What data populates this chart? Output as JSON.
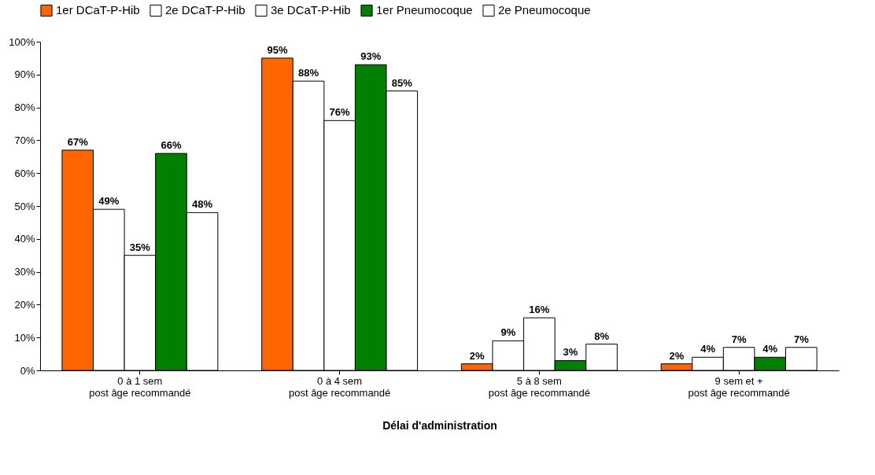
{
  "chart_data": {
    "type": "bar",
    "xlabel": "Délai d'administration",
    "categories": [
      "0 à 1 sem\npost âge recommandé",
      "0 à 4 sem\npost âge recommandé",
      "5 à 8 sem\npost âge recommandé",
      "9 sem et +\npost âge recommandé"
    ],
    "series": [
      {
        "name": "1er DCaT-P-Hib",
        "color": "#ff6600",
        "values": [
          67,
          95,
          2,
          2
        ],
        "value_labels": [
          "67%",
          "95%",
          "2%",
          "2%"
        ]
      },
      {
        "name": "2e DCaT-P-Hib",
        "color": "#ffffff",
        "values": [
          49,
          88,
          9,
          4
        ],
        "value_labels": [
          "49%",
          "88%",
          "9%",
          "4%"
        ]
      },
      {
        "name": "3e DCaT-P-Hib",
        "color": "#ffffff",
        "values": [
          35,
          76,
          16,
          7
        ],
        "value_labels": [
          "35%",
          "76%",
          "16%",
          "7%"
        ]
      },
      {
        "name": "1er Pneumocoque",
        "color": "#008000",
        "values": [
          66,
          93,
          3,
          4
        ],
        "value_labels": [
          "66%",
          "93%",
          "3%",
          "4%"
        ]
      },
      {
        "name": "2e Pneumocoque",
        "color": "#ffffff",
        "values": [
          48,
          85,
          8,
          7
        ],
        "value_labels": [
          "48%",
          "85%",
          "8%",
          "7%"
        ]
      }
    ],
    "ylim": [
      0,
      100
    ],
    "yticks": [
      {
        "value": 0,
        "label": "0%"
      },
      {
        "value": 10,
        "label": "10%"
      },
      {
        "value": 20,
        "label": "20%"
      },
      {
        "value": 30,
        "label": "30%"
      },
      {
        "value": 40,
        "label": "40%"
      },
      {
        "value": 50,
        "label": "50%"
      },
      {
        "value": 60,
        "label": "60%"
      },
      {
        "value": 70,
        "label": "70%"
      },
      {
        "value": 80,
        "label": "80%"
      },
      {
        "value": 90,
        "label": "90%"
      },
      {
        "value": 100,
        "label": "100%"
      }
    ],
    "legend": "top",
    "grid": false
  }
}
